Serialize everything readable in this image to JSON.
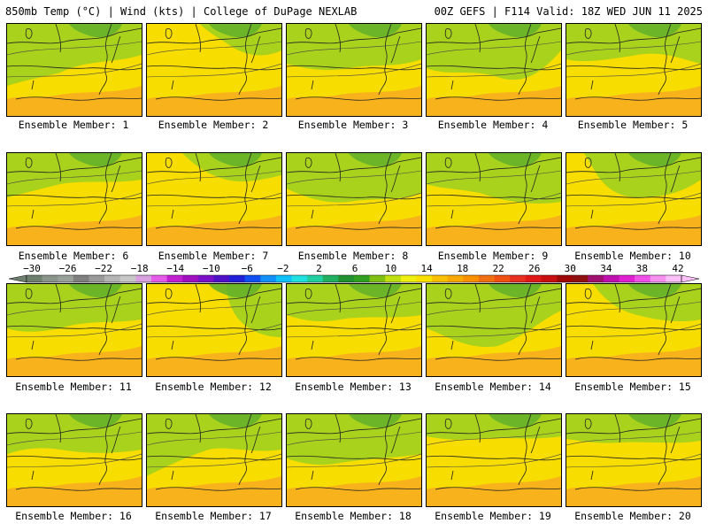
{
  "header": {
    "title_left": "850mb Temp (°C) | Wind (kts) | College of DuPage NEXLAB",
    "title_right": "00Z GEFS | F114 Valid: 18Z WED JUN 11 2025"
  },
  "members": [
    {
      "label": "Ensemble Member: 1"
    },
    {
      "label": "Ensemble Member: 2"
    },
    {
      "label": "Ensemble Member: 3"
    },
    {
      "label": "Ensemble Member: 4"
    },
    {
      "label": "Ensemble Member: 5"
    },
    {
      "label": "Ensemble Member: 6"
    },
    {
      "label": "Ensemble Member: 7"
    },
    {
      "label": "Ensemble Member: 8"
    },
    {
      "label": "Ensemble Member: 9"
    },
    {
      "label": "Ensemble Member: 10"
    },
    {
      "label": "Ensemble Member: 11"
    },
    {
      "label": "Ensemble Member: 12"
    },
    {
      "label": "Ensemble Member: 13"
    },
    {
      "label": "Ensemble Member: 14"
    },
    {
      "label": "Ensemble Member: 15"
    },
    {
      "label": "Ensemble Member: 16"
    },
    {
      "label": "Ensemble Member: 17"
    },
    {
      "label": "Ensemble Member: 18"
    },
    {
      "label": "Ensemble Member: 19"
    },
    {
      "label": "Ensemble Member: 20"
    }
  ],
  "colorbar": {
    "tick_labels": [
      "−30",
      "−26",
      "−22",
      "−18",
      "−14",
      "−10",
      "−6",
      "−2",
      "2",
      "6",
      "10",
      "14",
      "18",
      "22",
      "26",
      "30",
      "34",
      "38",
      "42"
    ],
    "colors": [
      "#6f7f6f",
      "#8a948a",
      "#9aa09a",
      "#7f7f7f",
      "#9a9a9a",
      "#b4b4b4",
      "#c8c8c8",
      "#d9a0e0",
      "#e45be8",
      "#c020d0",
      "#a010c0",
      "#7a10c8",
      "#5010c8",
      "#2020d8",
      "#1050f0",
      "#1090f8",
      "#10c0f8",
      "#20e0e0",
      "#20d0a0",
      "#20b060",
      "#209030",
      "#30a020",
      "#80c010",
      "#c0e010",
      "#f0f010",
      "#f8e000",
      "#f8c000",
      "#f8a800",
      "#f89000",
      "#f07010",
      "#f05010",
      "#e83020",
      "#e01818",
      "#c81010",
      "#a00808",
      "#901010",
      "#a01070",
      "#c010b0",
      "#e020d0",
      "#f050e8",
      "#f890f0",
      "#fcc0f8"
    ]
  }
}
